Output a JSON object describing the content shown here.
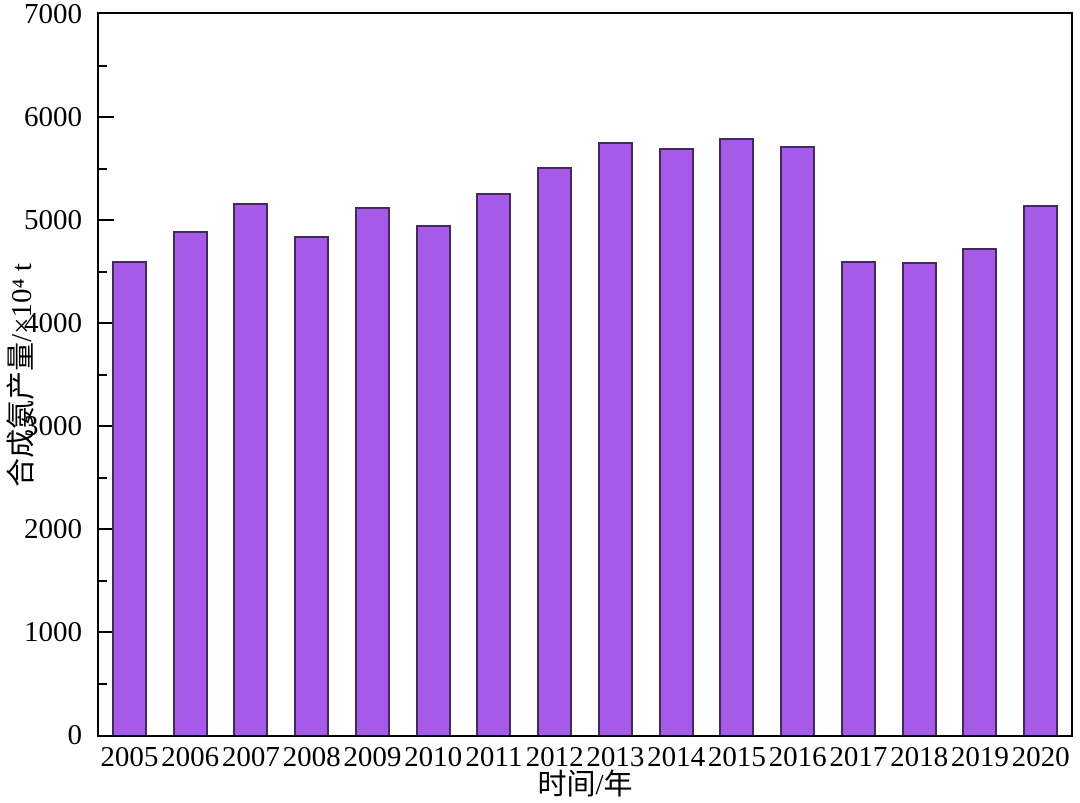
{
  "chart_data": {
    "type": "bar",
    "title": "",
    "xlabel": "时间/年",
    "ylabel": "合成氨产量/×10⁴ t",
    "categories": [
      "2005",
      "2006",
      "2007",
      "2008",
      "2009",
      "2010",
      "2011",
      "2012",
      "2013",
      "2014",
      "2015",
      "2016",
      "2017",
      "2018",
      "2019",
      "2020"
    ],
    "values": [
      4600,
      4895,
      5165,
      4840,
      5125,
      4950,
      5260,
      5515,
      5760,
      5700,
      5800,
      5715,
      4605,
      4595,
      4730,
      5150
    ],
    "ylim": [
      0,
      7000
    ],
    "y_major_step": 1000,
    "y_minor_step": 500,
    "y_tick_labels": [
      "0",
      "1000",
      "2000",
      "3000",
      "4000",
      "5000",
      "6000",
      "7000"
    ],
    "grid": false,
    "legend_position": "none",
    "colors": {
      "bar_fill": "#a65ae8",
      "bar_border": "#44295f",
      "axis": "#000000",
      "background": "#ffffff",
      "text": "#000000"
    }
  }
}
